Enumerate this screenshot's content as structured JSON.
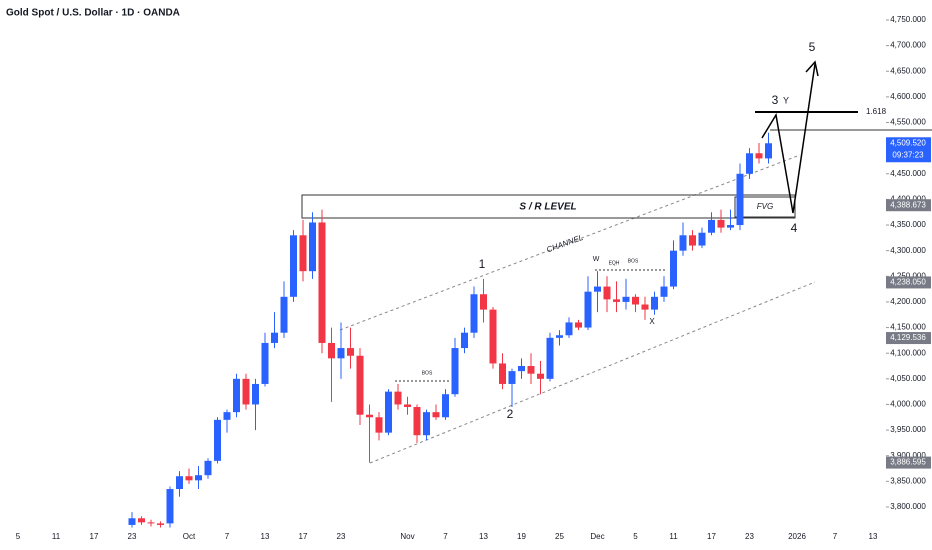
{
  "chart_data": {
    "type": "candlestick",
    "title": "Gold Spot / U.S. Dollar · 1D · OANDA",
    "categories": [
      "5",
      null,
      null,
      null,
      "11",
      null,
      null,
      null,
      "17",
      null,
      null,
      null,
      "23",
      null,
      null,
      null,
      null,
      null,
      "Oct",
      null,
      null,
      null,
      "7",
      null,
      null,
      null,
      "13",
      null,
      null,
      null,
      "17",
      null,
      null,
      null,
      "23",
      null,
      null,
      null,
      null,
      null,
      null,
      "Nov",
      null,
      null,
      null,
      "7",
      null,
      null,
      null,
      "13",
      null,
      null,
      null,
      "19",
      null,
      null,
      null,
      "25",
      null,
      null,
      null,
      "Dec",
      null,
      null,
      null,
      "5",
      null,
      null,
      null,
      "11",
      null,
      null,
      null,
      "17",
      null,
      null,
      null,
      "23",
      null,
      null,
      null,
      null,
      "2026",
      null,
      null,
      null,
      "7",
      null,
      null,
      null,
      "13"
    ],
    "open": [
      null,
      null,
      null,
      null,
      null,
      null,
      null,
      null,
      null,
      null,
      null,
      null,
      3765,
      3778,
      3770,
      3768,
      3768,
      3835,
      3860,
      3852,
      3862,
      3890,
      3970,
      3985,
      4050,
      4000,
      4040,
      4120,
      4140,
      4210,
      4330,
      4260,
      4355,
      4120,
      4090,
      4110,
      4095,
      3980,
      3975,
      3945,
      4025,
      4000,
      3995,
      3940,
      3985,
      3975,
      4020,
      4110,
      4140,
      4215,
      4185,
      4080,
      4040,
      4065,
      4075,
      4060,
      4050,
      4130,
      4135,
      4160,
      4150,
      4220,
      4230,
      4205,
      4200,
      4210,
      4195,
      4185,
      4210,
      4230,
      4300,
      4330,
      4310,
      4335,
      4360,
      4345,
      4350,
      4450,
      4490,
      4480,
      null,
      null,
      null,
      null,
      null,
      null,
      null,
      null,
      null,
      null,
      null
    ],
    "high": [
      null,
      null,
      null,
      null,
      null,
      null,
      null,
      null,
      null,
      null,
      null,
      null,
      3790,
      3782,
      3775,
      3772,
      3840,
      3870,
      3875,
      3880,
      3895,
      3975,
      3990,
      4060,
      4060,
      4050,
      4140,
      4180,
      4240,
      4340,
      4360,
      4375,
      4380,
      4150,
      4160,
      4150,
      4110,
      4000,
      3985,
      4030,
      4040,
      4015,
      4000,
      3990,
      4000,
      4030,
      4130,
      4150,
      4230,
      4245,
      4190,
      4100,
      4070,
      4090,
      4100,
      4085,
      4140,
      4145,
      4170,
      4165,
      4250,
      4260,
      4250,
      4240,
      4245,
      4215,
      4210,
      4220,
      4250,
      4320,
      4355,
      4340,
      4345,
      4375,
      4380,
      4380,
      4470,
      4500,
      4510,
      4530,
      null,
      null,
      null,
      null,
      null,
      null,
      null,
      null,
      null,
      null,
      null
    ],
    "low": [
      null,
      null,
      null,
      null,
      null,
      null,
      null,
      null,
      null,
      null,
      null,
      null,
      3760,
      3765,
      3762,
      3760,
      3760,
      3820,
      3845,
      3835,
      3855,
      3885,
      3945,
      3975,
      3990,
      3950,
      4035,
      4110,
      4130,
      4200,
      4240,
      4245,
      4100,
      4005,
      4050,
      4070,
      3960,
      3886.595,
      3930,
      3940,
      3990,
      3980,
      3925,
      3930,
      3970,
      3970,
      4015,
      4100,
      4130,
      4160,
      4070,
      4030,
      3995,
      4050,
      4040,
      4020,
      4045,
      4115,
      4130,
      4145,
      4145,
      4180,
      4180,
      4180,
      4185,
      4180,
      4165,
      4175,
      4200,
      4225,
      4290,
      4300,
      4305,
      4330,
      4335,
      4340,
      4340,
      4440,
      4470,
      4470,
      null,
      null,
      null,
      null,
      null,
      null,
      null,
      null,
      null,
      null,
      null
    ],
    "close": [
      null,
      null,
      null,
      null,
      null,
      null,
      null,
      null,
      null,
      null,
      null,
      null,
      3778,
      3770,
      3768,
      3765,
      3835,
      3860,
      3852,
      3862,
      3890,
      3970,
      3985,
      4050,
      4000,
      4040,
      4120,
      4140,
      4210,
      4330,
      4260,
      4355,
      4120,
      4090,
      4110,
      4095,
      3980,
      3975,
      3945,
      4025,
      4000,
      3995,
      3940,
      3985,
      3975,
      4020,
      4110,
      4140,
      4215,
      4185,
      4080,
      4040,
      4065,
      4075,
      4060,
      4050,
      4130,
      4135,
      4160,
      4150,
      4220,
      4230,
      4205,
      4200,
      4210,
      4195,
      4185,
      4210,
      4230,
      4300,
      4330,
      4310,
      4335,
      4360,
      4345,
      4350,
      4450,
      4490,
      4480,
      4509.52,
      null,
      null,
      null,
      null,
      null,
      null,
      null,
      null,
      null,
      null,
      null
    ],
    "up_color": "#2962ff",
    "down_color": "#f23645",
    "ylim": [
      3759,
      4789
    ],
    "yticks": [
      {
        "value": 3800,
        "label": "3,800.000"
      },
      {
        "value": 3850,
        "label": "3,850.000"
      },
      {
        "value": 3900,
        "label": "3,900.000"
      },
      {
        "value": 3950,
        "label": "3,950.000"
      },
      {
        "value": 4000,
        "label": "4,000.000"
      },
      {
        "value": 4050,
        "label": "4,050.000"
      },
      {
        "value": 4100,
        "label": "4,100.000"
      },
      {
        "value": 4150,
        "label": "4,150.000"
      },
      {
        "value": 4200,
        "label": "4,200.000"
      },
      {
        "value": 4250,
        "label": "4,250.000"
      },
      {
        "value": 4300,
        "label": "4,300.000"
      },
      {
        "value": 4350,
        "label": "4,350.000"
      },
      {
        "value": 4400,
        "label": "4,400.000"
      },
      {
        "value": 4450,
        "label": "4,450.000"
      },
      {
        "value": 4500,
        "label": "4,500.000"
      },
      {
        "value": 4550,
        "label": "4,550.000"
      },
      {
        "value": 4600,
        "label": "4,600.000"
      },
      {
        "value": 4650,
        "label": "4,650.000"
      },
      {
        "value": 4700,
        "label": "4,700.000"
      },
      {
        "value": 4750,
        "label": "4,750.000"
      }
    ],
    "price_tags": [
      {
        "value": 4509.52,
        "label": "4,509.520"
      },
      {
        "value": 4388.673,
        "label": "4,388.673"
      },
      {
        "value": 4238.05,
        "label": "4,238.050"
      },
      {
        "value": 4129.536,
        "label": "4,129.536"
      },
      {
        "value": 3886.595,
        "label": "3,886.595"
      }
    ],
    "countdown": "09:37:23",
    "annotations": [
      "1",
      "2",
      "3",
      "Y",
      "4",
      "5",
      "W",
      "EQH",
      "BOS",
      "BOS",
      "X",
      "CHANNEL",
      "S / R LEVEL",
      "FVG",
      "1.618"
    ]
  }
}
